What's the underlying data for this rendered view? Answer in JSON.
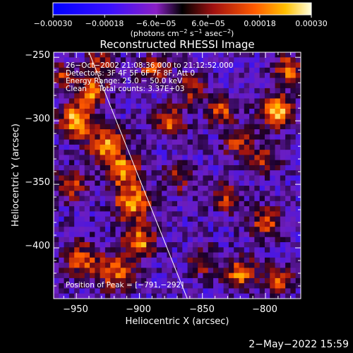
{
  "chart_data": {
    "type": "heatmap",
    "title": "Reconstructed RHESSI Image",
    "xlabel": "Heliocentric X (arcsec)",
    "ylabel": "Heliocentric Y (arcsec)",
    "xlim": [
      -968,
      -772
    ],
    "ylim": [
      -440,
      -246
    ],
    "x_ticks": [
      -950,
      -900,
      -850,
      -800
    ],
    "x_tick_labels": [
      "−950",
      "−900",
      "−850",
      "−800"
    ],
    "y_ticks": [
      -250,
      -300,
      -350,
      -400
    ],
    "y_tick_labels": [
      "−250",
      "−300",
      "−350",
      "−400"
    ],
    "colorbar": {
      "range": [
        -0.0003,
        0.0003
      ],
      "tick_values": [
        -0.0003,
        -0.00018,
        -6e-05,
        6e-05,
        0.00018,
        0.0003
      ],
      "tick_labels": [
        "−0.00030",
        "−0.00018",
        "−6.0e−05",
        "6.0e−05",
        "0.00018",
        "0.00030"
      ],
      "units_prefix": "(photons cm",
      "units_exp1": "−2",
      "units_mid": " s",
      "units_exp2": "−1",
      "units_mid2": " asec",
      "units_exp3": "−2",
      "units_suffix": ")"
    },
    "annotations": [
      "26−Oct−2002 21:08:36.000 to 21:12:52.000",
      "Detectors: 3F 4F 5F 6F 7F 8F, Att 0",
      "Energy Range: 25.0 − 50.0 keV",
      "Clean     Total counts: 3.37E+03"
    ],
    "peak_label": "Position of Peak = [−791,−292]",
    "peak": [
      -791,
      -292
    ],
    "limb_line": [
      [
        -940,
        -246
      ],
      [
        -862,
        -440
      ]
    ],
    "bright_sources": [
      {
        "x": -950,
        "y": -300,
        "amp": 1.0,
        "r": 9
      },
      {
        "x": -938,
        "y": -278,
        "amp": 0.8,
        "r": 8
      },
      {
        "x": -925,
        "y": -320,
        "amp": 0.85,
        "r": 10
      },
      {
        "x": -912,
        "y": -340,
        "amp": 0.8,
        "r": 9
      },
      {
        "x": -905,
        "y": -365,
        "amp": 0.9,
        "r": 10
      },
      {
        "x": -900,
        "y": -395,
        "amp": 0.85,
        "r": 9
      },
      {
        "x": -918,
        "y": -420,
        "amp": 0.75,
        "r": 10
      },
      {
        "x": -945,
        "y": -410,
        "amp": 0.7,
        "r": 10
      },
      {
        "x": -955,
        "y": -350,
        "amp": 0.6,
        "r": 9
      },
      {
        "x": -888,
        "y": -260,
        "amp": 0.7,
        "r": 8
      },
      {
        "x": -875,
        "y": -300,
        "amp": 0.75,
        "r": 8
      },
      {
        "x": -860,
        "y": -275,
        "amp": 0.6,
        "r": 8
      },
      {
        "x": -835,
        "y": -292,
        "amp": 0.65,
        "r": 8
      },
      {
        "x": -822,
        "y": -318,
        "amp": 0.6,
        "r": 8
      },
      {
        "x": -791,
        "y": -292,
        "amp": 1.0,
        "r": 9
      },
      {
        "x": -782,
        "y": -260,
        "amp": 0.75,
        "r": 8
      },
      {
        "x": -800,
        "y": -330,
        "amp": 0.55,
        "r": 8
      },
      {
        "x": -830,
        "y": -360,
        "amp": 0.6,
        "r": 8
      },
      {
        "x": -800,
        "y": -380,
        "amp": 0.65,
        "r": 9
      },
      {
        "x": -820,
        "y": -420,
        "amp": 0.75,
        "r": 9
      },
      {
        "x": -790,
        "y": -425,
        "amp": 0.7,
        "r": 8
      },
      {
        "x": -850,
        "y": -410,
        "amp": 0.55,
        "r": 8
      },
      {
        "x": -870,
        "y": -345,
        "amp": 0.5,
        "r": 8
      },
      {
        "x": -930,
        "y": -255,
        "amp": 0.6,
        "r": 8
      },
      {
        "x": -960,
        "y": -265,
        "amp": 0.55,
        "r": 7
      }
    ]
  },
  "footer": {
    "date": "2−May−2022 15:59"
  }
}
